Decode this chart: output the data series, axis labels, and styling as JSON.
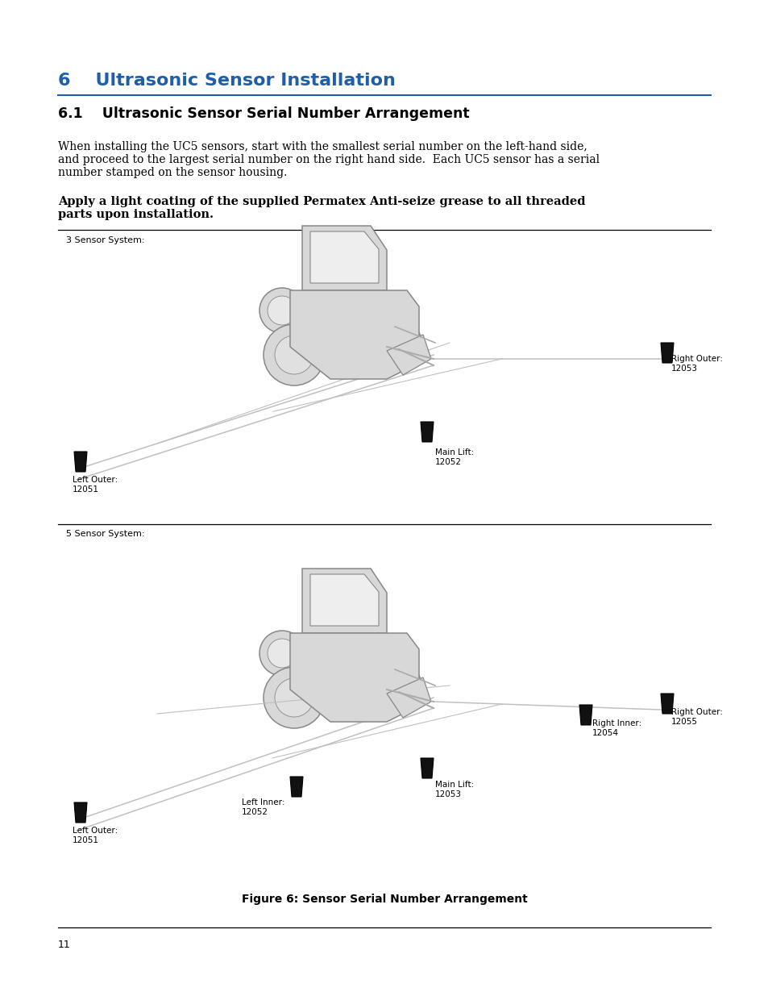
{
  "bg_color": "#ffffff",
  "page_width": 9.54,
  "page_height": 12.35,
  "heading1_text": "6    Ultrasonic Sensor Installation",
  "heading1_color": "#1F5EA8",
  "heading1_fontsize": 16,
  "heading2_text": "6.1    Ultrasonic Sensor Serial Number Arrangement",
  "heading2_fontsize": 12.5,
  "body_text": "When installing the UC5 sensors, start with the smallest serial number on the left-hand side,\nand proceed to the largest serial number on the right hand side.  Each UC5 sensor has a serial\nnumber stamped on the sensor housing.",
  "body_fontsize": 10,
  "bold_text": "Apply a light coating of the supplied Permatex Anti-seize grease to all threaded\nparts upon installation.",
  "bold_fontsize": 10.5,
  "figure_caption": "Figure 6: Sensor Serial Number Arrangement",
  "figure_caption_fontsize": 10,
  "page_number": "11",
  "line_color": "#1F5EA8",
  "section1_label": "3 Sensor System:",
  "section2_label": "5 Sensor System:",
  "label_fontsize": 7.5
}
